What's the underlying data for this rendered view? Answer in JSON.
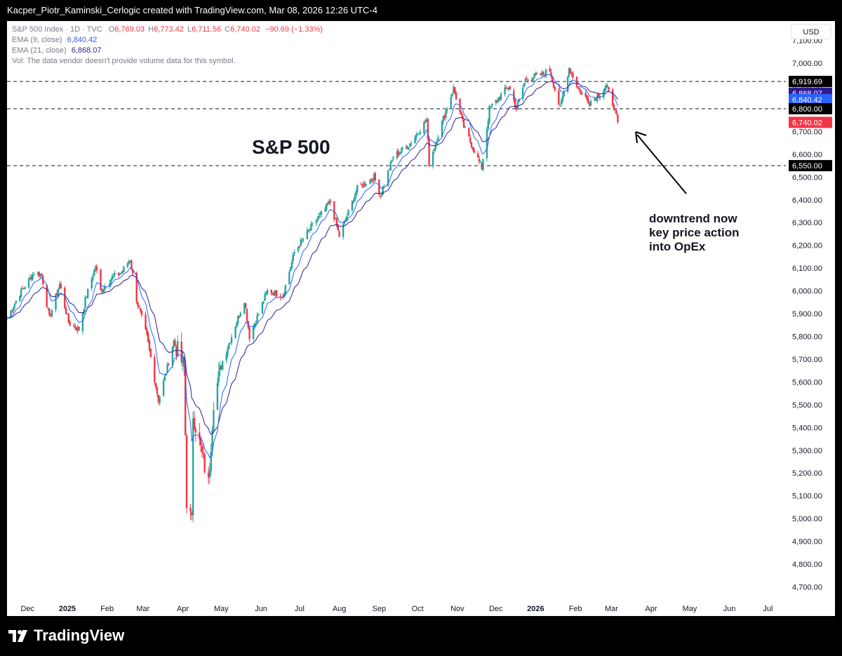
{
  "header": {
    "attribution": "Kacper_Piotr_Kaminski_Cerlogic created with TradingView.com, Mar 08, 2026 12:26 UTC-4"
  },
  "legend": {
    "symbol": "S&P 500 Index · 1D · TVC",
    "o_label": "O",
    "o_value": "6,769.03",
    "h_label": "H",
    "h_value": "6,773.42",
    "l_label": "L",
    "l_value": "6,711.56",
    "c_label": "C",
    "c_value": "6,740.02",
    "change": "−90.69 (−1.33%)",
    "ema9_label": "EMA (9, close)",
    "ema9_value": "6,840.42",
    "ema21_label": "EMA (21, close)",
    "ema21_value": "6,868.07",
    "vol_note": "Vol: The data vendor doesn't provide volume data for this symbol."
  },
  "currency": "USD",
  "brand": {
    "name": "TradingView",
    "logo_icon": "tradingview-logo-icon"
  },
  "chart_data": {
    "type": "candlestick",
    "title": "S&P 500",
    "annotation": [
      "downtrend now",
      "key price action",
      "into OpEx"
    ],
    "colors": {
      "up": "#26a69a",
      "down": "#f23645",
      "ema9": "#2962ff",
      "ema21": "#311b92",
      "annotation_arrow": "#000000"
    },
    "ylim": [
      4640,
      7185
    ],
    "y_ticks": [
      4700,
      4800,
      4900,
      5000,
      5100,
      5200,
      5300,
      5400,
      5500,
      5600,
      5700,
      5800,
      5900,
      6000,
      6100,
      6200,
      6300,
      6400,
      6500,
      6600,
      6700,
      6800,
      6900,
      7000,
      7100
    ],
    "y_tick_labels": [
      "4,700.00",
      "4,800.00",
      "4,900.00",
      "5,000.00",
      "5,100.00",
      "5,200.00",
      "5,300.00",
      "5,400.00",
      "5,500.00",
      "5,600.00",
      "5,700.00",
      "5,800.00",
      "5,900.00",
      "6,000.00",
      "6,100.00",
      "6,200.00",
      "6,300.00",
      "6,400.00",
      "6,500.00",
      "6,600.00",
      "6,700.00",
      "6,800.00",
      "6,900.00",
      "7,000.00",
      "7,100.00"
    ],
    "x_range": [
      "2024-11-15",
      "2026-07-15"
    ],
    "x_ticks": [
      {
        "date": "2024-12-01",
        "label": "Dec",
        "bold": false
      },
      {
        "date": "2025-01-01",
        "label": "2025",
        "bold": true
      },
      {
        "date": "2025-02-01",
        "label": "Feb",
        "bold": false
      },
      {
        "date": "2025-03-01",
        "label": "Mar",
        "bold": false
      },
      {
        "date": "2025-04-01",
        "label": "Apr",
        "bold": false
      },
      {
        "date": "2025-05-01",
        "label": "May",
        "bold": false
      },
      {
        "date": "2025-06-01",
        "label": "Jun",
        "bold": false
      },
      {
        "date": "2025-07-01",
        "label": "Jul",
        "bold": false
      },
      {
        "date": "2025-08-01",
        "label": "Aug",
        "bold": false
      },
      {
        "date": "2025-09-01",
        "label": "Sep",
        "bold": false
      },
      {
        "date": "2025-10-01",
        "label": "Oct",
        "bold": false
      },
      {
        "date": "2025-11-01",
        "label": "Nov",
        "bold": false
      },
      {
        "date": "2025-12-01",
        "label": "Dec",
        "bold": false
      },
      {
        "date": "2026-01-01",
        "label": "2026",
        "bold": true
      },
      {
        "date": "2026-02-01",
        "label": "Feb",
        "bold": false
      },
      {
        "date": "2026-03-01",
        "label": "Mar",
        "bold": false
      },
      {
        "date": "2026-04-01",
        "label": "Apr",
        "bold": false
      },
      {
        "date": "2026-05-01",
        "label": "May",
        "bold": false
      },
      {
        "date": "2026-06-01",
        "label": "Jun",
        "bold": false
      },
      {
        "date": "2026-07-01",
        "label": "Jul",
        "bold": false
      }
    ],
    "horizontal_lines": [
      6919.69,
      6800,
      6550
    ],
    "price_labels": [
      {
        "value": 6919.69,
        "label": "6,919.69",
        "color": "#000000"
      },
      {
        "value": 6868.07,
        "label": "6,868.07",
        "color": "#311b92"
      },
      {
        "value": 6840.42,
        "label": "6,840.42",
        "color": "#2962ff"
      },
      {
        "value": 6800,
        "label": "6,800.00",
        "color": "#000000"
      },
      {
        "value": 6740.02,
        "label": "6,740.02",
        "color": "#f23645"
      },
      {
        "value": 6550,
        "label": "6,550.00",
        "color": "#000000"
      }
    ],
    "price_path": [
      [
        "2024-11-15",
        5880
      ],
      [
        "2024-11-25",
        5990
      ],
      [
        "2024-12-06",
        6080
      ],
      [
        "2024-12-12",
        6070
      ],
      [
        "2024-12-18",
        5880
      ],
      [
        "2024-12-26",
        6030
      ],
      [
        "2025-01-02",
        5860
      ],
      [
        "2025-01-10",
        5830
      ],
      [
        "2025-01-15",
        5960
      ],
      [
        "2025-01-23",
        6110
      ],
      [
        "2025-01-27",
        6000
      ],
      [
        "2025-02-05",
        6060
      ],
      [
        "2025-02-12",
        6080
      ],
      [
        "2025-02-19",
        6140
      ],
      [
        "2025-02-24",
        5960
      ],
      [
        "2025-03-04",
        5800
      ],
      [
        "2025-03-13",
        5520
      ],
      [
        "2025-03-18",
        5620
      ],
      [
        "2025-03-25",
        5780
      ],
      [
        "2025-04-02",
        5660
      ],
      [
        "2025-04-04",
        5080
      ],
      [
        "2025-04-08",
        4980
      ],
      [
        "2025-04-09",
        5460
      ],
      [
        "2025-04-21",
        5150
      ],
      [
        "2025-04-25",
        5520
      ],
      [
        "2025-05-02",
        5690
      ],
      [
        "2025-05-12",
        5850
      ],
      [
        "2025-05-19",
        5960
      ],
      [
        "2025-05-23",
        5800
      ],
      [
        "2025-06-06",
        6000
      ],
      [
        "2025-06-18",
        5980
      ],
      [
        "2025-06-27",
        6170
      ],
      [
        "2025-07-10",
        6280
      ],
      [
        "2025-07-25",
        6390
      ],
      [
        "2025-08-01",
        6240
      ],
      [
        "2025-08-15",
        6450
      ],
      [
        "2025-08-28",
        6500
      ],
      [
        "2025-09-02",
        6420
      ],
      [
        "2025-09-12",
        6590
      ],
      [
        "2025-09-24",
        6640
      ],
      [
        "2025-10-08",
        6750
      ],
      [
        "2025-10-10",
        6560
      ],
      [
        "2025-10-20",
        6740
      ],
      [
        "2025-10-29",
        6890
      ],
      [
        "2025-11-06",
        6720
      ],
      [
        "2025-11-20",
        6540
      ],
      [
        "2025-11-26",
        6800
      ],
      [
        "2025-12-11",
        6900
      ],
      [
        "2025-12-17",
        6800
      ],
      [
        "2025-12-24",
        6930
      ],
      [
        "2026-01-06",
        6950
      ],
      [
        "2026-01-12",
        6970
      ],
      [
        "2026-01-20",
        6800
      ],
      [
        "2026-01-27",
        6980
      ],
      [
        "2026-02-04",
        6880
      ],
      [
        "2026-02-12",
        6830
      ],
      [
        "2026-02-19",
        6860
      ],
      [
        "2026-02-25",
        6900
      ],
      [
        "2026-03-03",
        6810
      ],
      [
        "2026-03-06",
        6740.02
      ]
    ],
    "ema9_end": 6840.42,
    "ema21_end": 6868.07
  }
}
